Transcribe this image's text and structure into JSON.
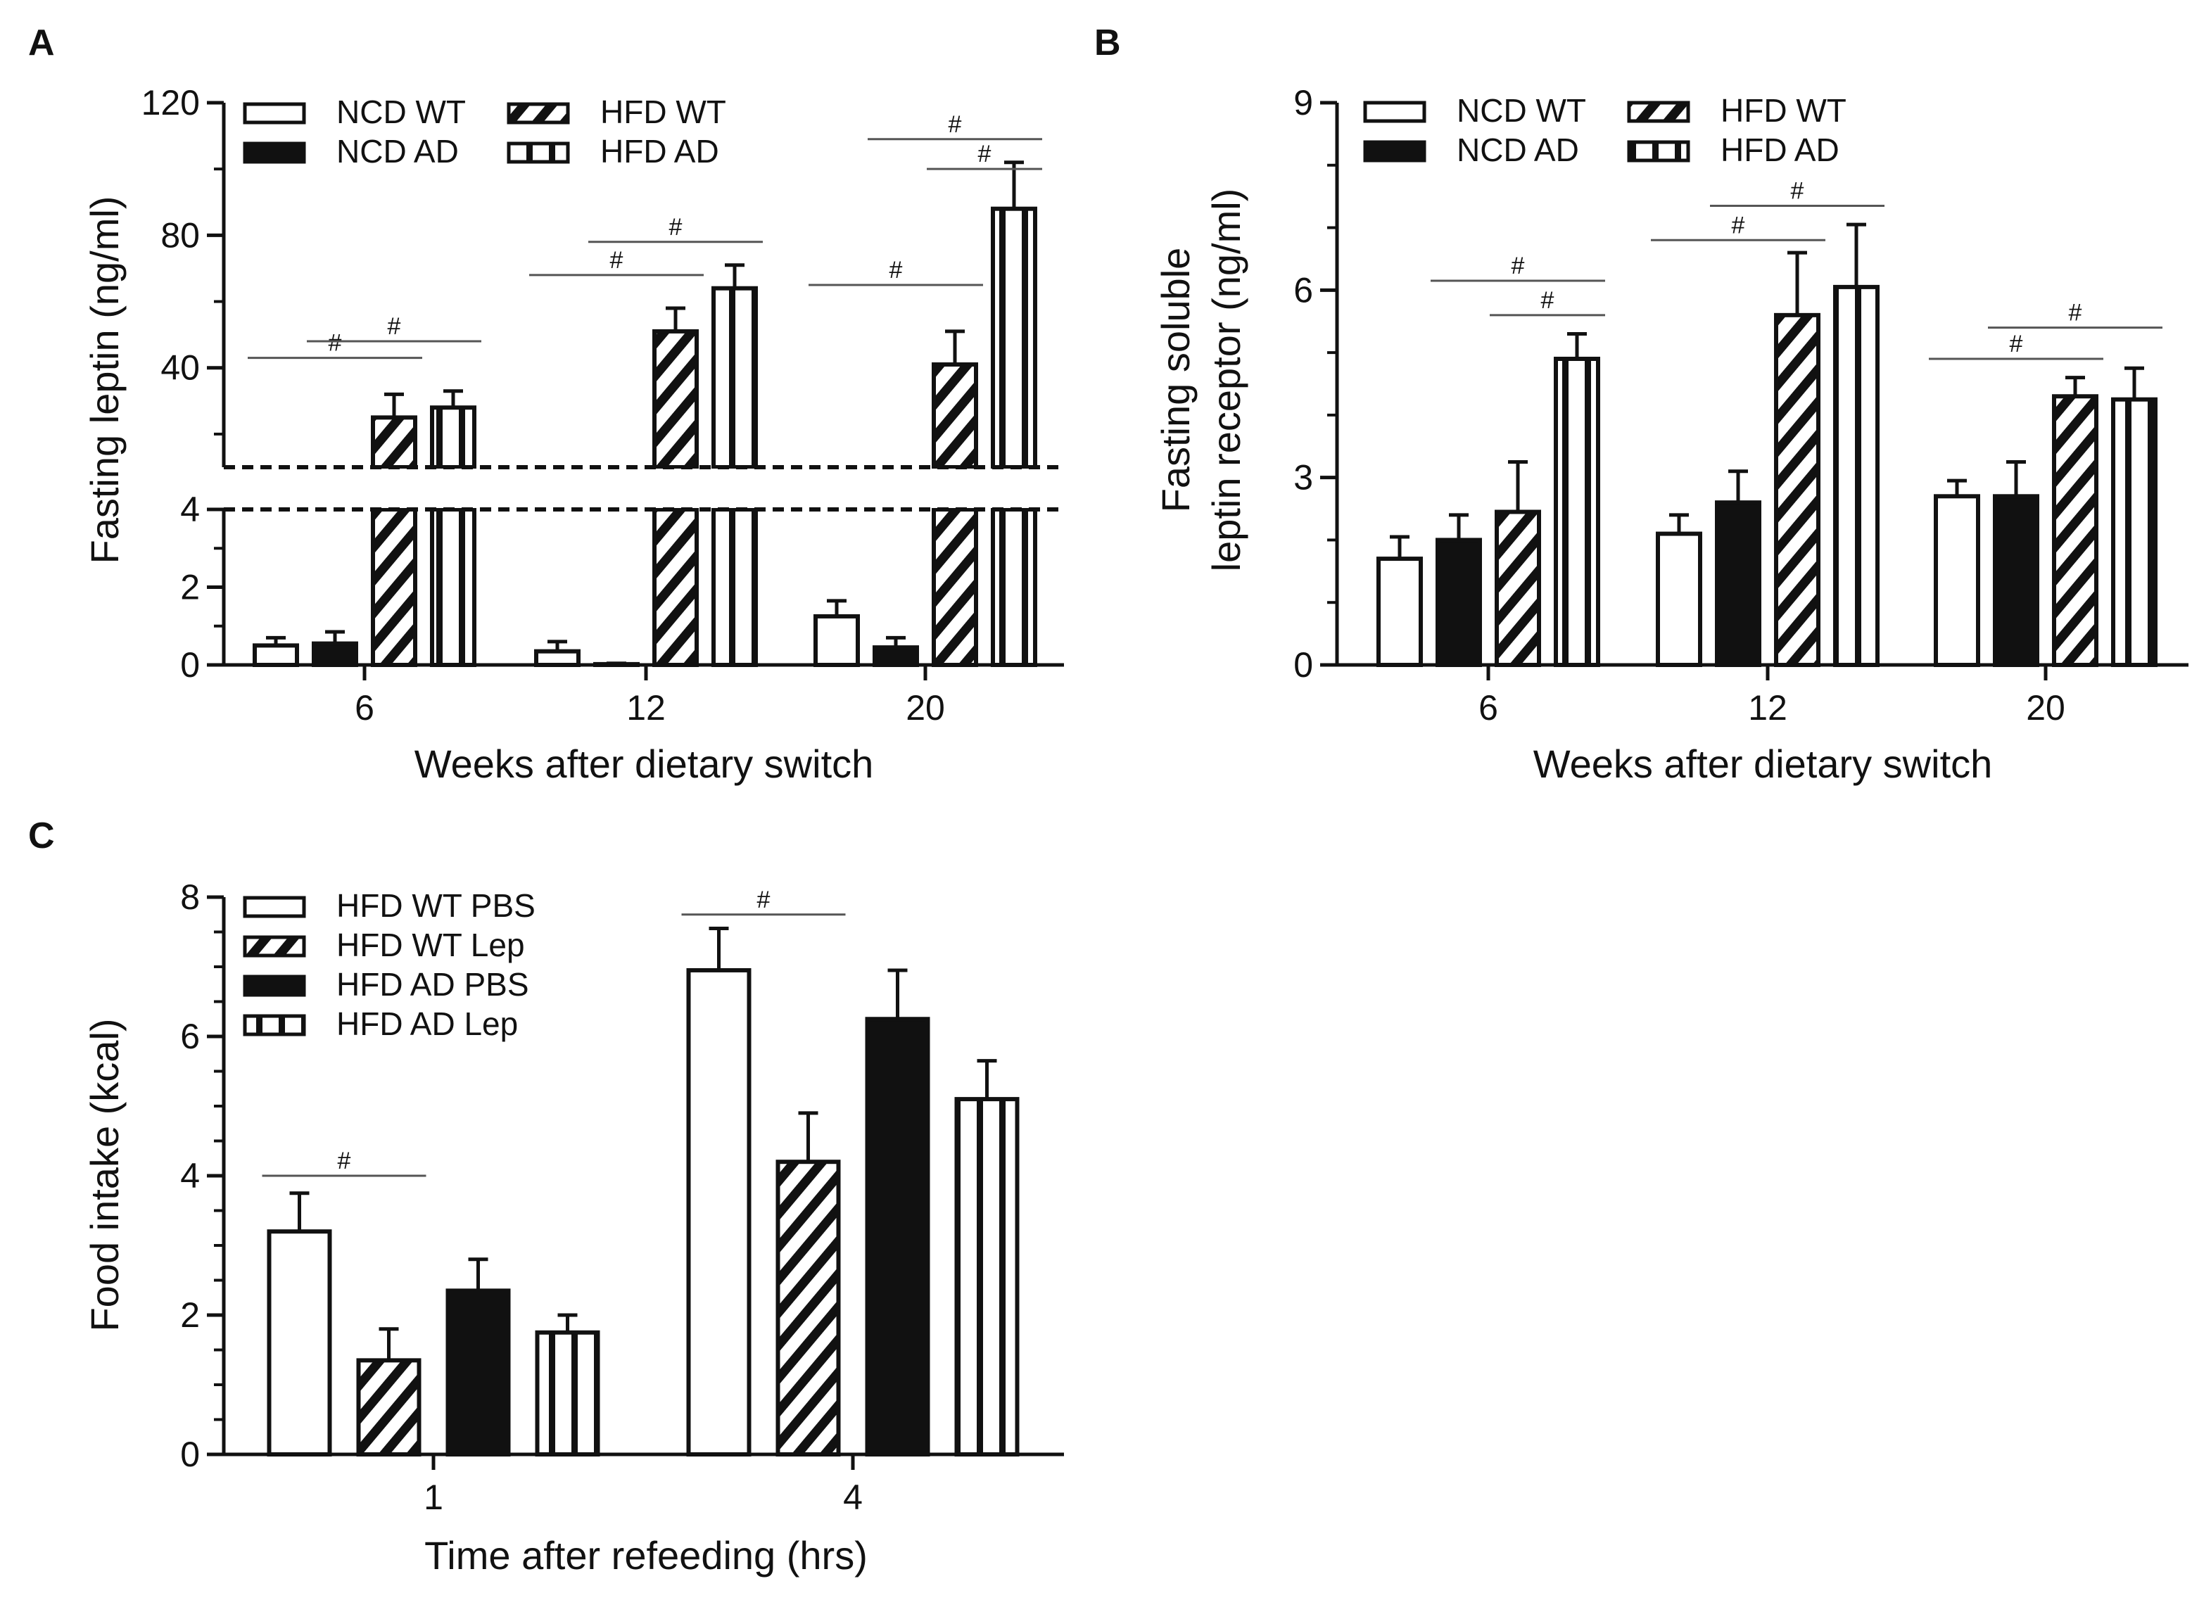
{
  "colors": {
    "ink": "#111111",
    "paper": "#ffffff",
    "stat_line": "#555555"
  },
  "significance_symbol": "#",
  "chart_data": [
    {
      "panel": "A",
      "type": "bar",
      "split_axis": true,
      "ylabel": "Fasting leptin (ng/ml)",
      "xlabel": "Weeks after dietary switch",
      "categories": [
        "6",
        "12",
        "20"
      ],
      "upper_ylim": [
        10,
        120
      ],
      "upper_ticks": [
        "40",
        "80",
        "120"
      ],
      "upper_tick_values": [
        40,
        80,
        120
      ],
      "lower_ylim": [
        0,
        4
      ],
      "lower_ticks": [
        "0",
        "2",
        "4"
      ],
      "lower_tick_values": [
        0,
        2,
        4
      ],
      "legend": [
        {
          "label": "NCD WT",
          "pattern": "open"
        },
        {
          "label": "NCD AD",
          "pattern": "solid"
        },
        {
          "label": "HFD WT",
          "pattern": "hatch"
        },
        {
          "label": "HFD AD",
          "pattern": "vstripe"
        }
      ],
      "series": [
        {
          "name": "NCD WT",
          "pattern": "open",
          "values": [
            0.5,
            0.35,
            1.25
          ],
          "errors": [
            0.2,
            0.25,
            0.4
          ]
        },
        {
          "name": "NCD AD",
          "pattern": "solid",
          "values": [
            0.55,
            0.02,
            0.45
          ],
          "errors": [
            0.3,
            0.02,
            0.25
          ]
        },
        {
          "name": "HFD WT",
          "pattern": "hatch",
          "values": [
            25,
            51,
            41
          ],
          "errors": [
            7,
            7,
            10
          ]
        },
        {
          "name": "HFD AD",
          "pattern": "vstripe",
          "values": [
            28,
            64,
            88
          ],
          "errors": [
            5,
            7,
            14
          ]
        }
      ],
      "significance": [
        {
          "group": 0,
          "from": 0,
          "to": 2,
          "y": 43
        },
        {
          "group": 0,
          "from": 1,
          "to": 3,
          "y": 48
        },
        {
          "group": 1,
          "from": 0,
          "to": 2,
          "y": 68
        },
        {
          "group": 1,
          "from": 1,
          "to": 3,
          "y": 78
        },
        {
          "group": 2,
          "from": 0,
          "to": 2,
          "y": 65
        },
        {
          "group": 2,
          "from": 1,
          "to": 3,
          "y": 109
        },
        {
          "group": 2,
          "from": 2,
          "to": 3,
          "y": 100
        }
      ]
    },
    {
      "panel": "B",
      "type": "bar",
      "ylabel_lines": [
        "Fasting soluble",
        "leptin receptor (ng/ml)"
      ],
      "xlabel": "Weeks after dietary switch",
      "categories": [
        "6",
        "12",
        "20"
      ],
      "ylim": [
        0,
        9
      ],
      "yticks": [
        "0",
        "3",
        "6",
        "9"
      ],
      "ytick_values": [
        0,
        3,
        6,
        9
      ],
      "legend": [
        {
          "label": "NCD WT",
          "pattern": "open"
        },
        {
          "label": "NCD AD",
          "pattern": "solid"
        },
        {
          "label": "HFD WT",
          "pattern": "hatch"
        },
        {
          "label": "HFD AD",
          "pattern": "vstripe"
        }
      ],
      "series": [
        {
          "name": "NCD WT",
          "pattern": "open",
          "values": [
            1.7,
            2.1,
            2.7
          ],
          "errors": [
            0.35,
            0.3,
            0.25
          ]
        },
        {
          "name": "NCD AD",
          "pattern": "solid",
          "values": [
            2.0,
            2.6,
            2.7
          ],
          "errors": [
            0.4,
            0.5,
            0.55
          ]
        },
        {
          "name": "HFD WT",
          "pattern": "hatch",
          "values": [
            2.45,
            5.6,
            4.3
          ],
          "errors": [
            0.8,
            1.0,
            0.3
          ]
        },
        {
          "name": "HFD AD",
          "pattern": "vstripe",
          "values": [
            4.9,
            6.05,
            4.25
          ],
          "errors": [
            0.4,
            1.0,
            0.5
          ]
        }
      ],
      "significance": [
        {
          "group": 0,
          "from": 1,
          "to": 3,
          "y": 6.15
        },
        {
          "group": 0,
          "from": 2,
          "to": 3,
          "y": 5.6
        },
        {
          "group": 1,
          "from": 0,
          "to": 2,
          "y": 6.8
        },
        {
          "group": 1,
          "from": 1,
          "to": 3,
          "y": 7.35
        },
        {
          "group": 2,
          "from": 0,
          "to": 2,
          "y": 4.9
        },
        {
          "group": 2,
          "from": 1,
          "to": 3,
          "y": 5.4
        }
      ]
    },
    {
      "panel": "C",
      "type": "bar",
      "ylabel": "Food intake (kcal)",
      "xlabel": "Time after refeeding (hrs)",
      "categories": [
        "1",
        "4"
      ],
      "ylim": [
        0,
        8
      ],
      "yticks": [
        "0",
        "2",
        "4",
        "6",
        "8"
      ],
      "ytick_values": [
        0,
        2,
        4,
        6,
        8
      ],
      "legend": [
        {
          "label": "HFD WT PBS",
          "pattern": "open"
        },
        {
          "label": "HFD WT Lep",
          "pattern": "hatch"
        },
        {
          "label": "HFD AD PBS",
          "pattern": "solid"
        },
        {
          "label": "HFD AD Lep",
          "pattern": "vstripe"
        }
      ],
      "series": [
        {
          "name": "HFD WT PBS",
          "pattern": "open",
          "values": [
            3.2,
            6.95
          ],
          "errors": [
            0.55,
            0.6
          ]
        },
        {
          "name": "HFD WT Lep",
          "pattern": "hatch",
          "values": [
            1.35,
            4.2
          ],
          "errors": [
            0.45,
            0.7
          ]
        },
        {
          "name": "HFD AD PBS",
          "pattern": "solid",
          "values": [
            2.35,
            6.25
          ],
          "errors": [
            0.45,
            0.7
          ]
        },
        {
          "name": "HFD AD Lep",
          "pattern": "vstripe",
          "values": [
            1.75,
            5.1
          ],
          "errors": [
            0.25,
            0.55
          ]
        }
      ],
      "significance": [
        {
          "group": 0,
          "from": 0,
          "to": 1,
          "y": 4.0
        },
        {
          "group": 1,
          "from": 0,
          "to": 1,
          "y": 7.75
        }
      ]
    }
  ]
}
